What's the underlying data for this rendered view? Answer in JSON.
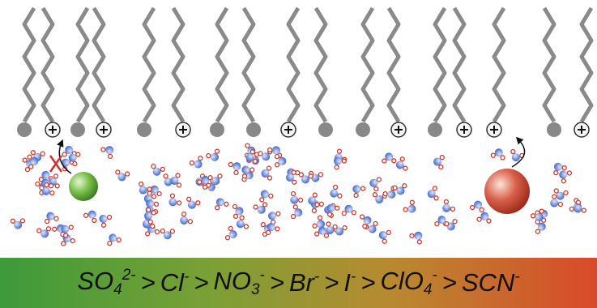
{
  "series_bar": {
    "ions": [
      {
        "base": "SO",
        "sub": "4",
        "sup": "2-"
      },
      {
        "base": "Cl",
        "sup": "-"
      },
      {
        "base": "NO",
        "sub": "3",
        "sup": "-"
      },
      {
        "base": "Br",
        "sup": "-"
      },
      {
        "base": "I",
        "sup": "-"
      },
      {
        "base": "ClO",
        "sub": "4",
        "sup": "-"
      },
      {
        "base": "SCN",
        "sup": "-"
      }
    ],
    "separator": ">"
  }
}
